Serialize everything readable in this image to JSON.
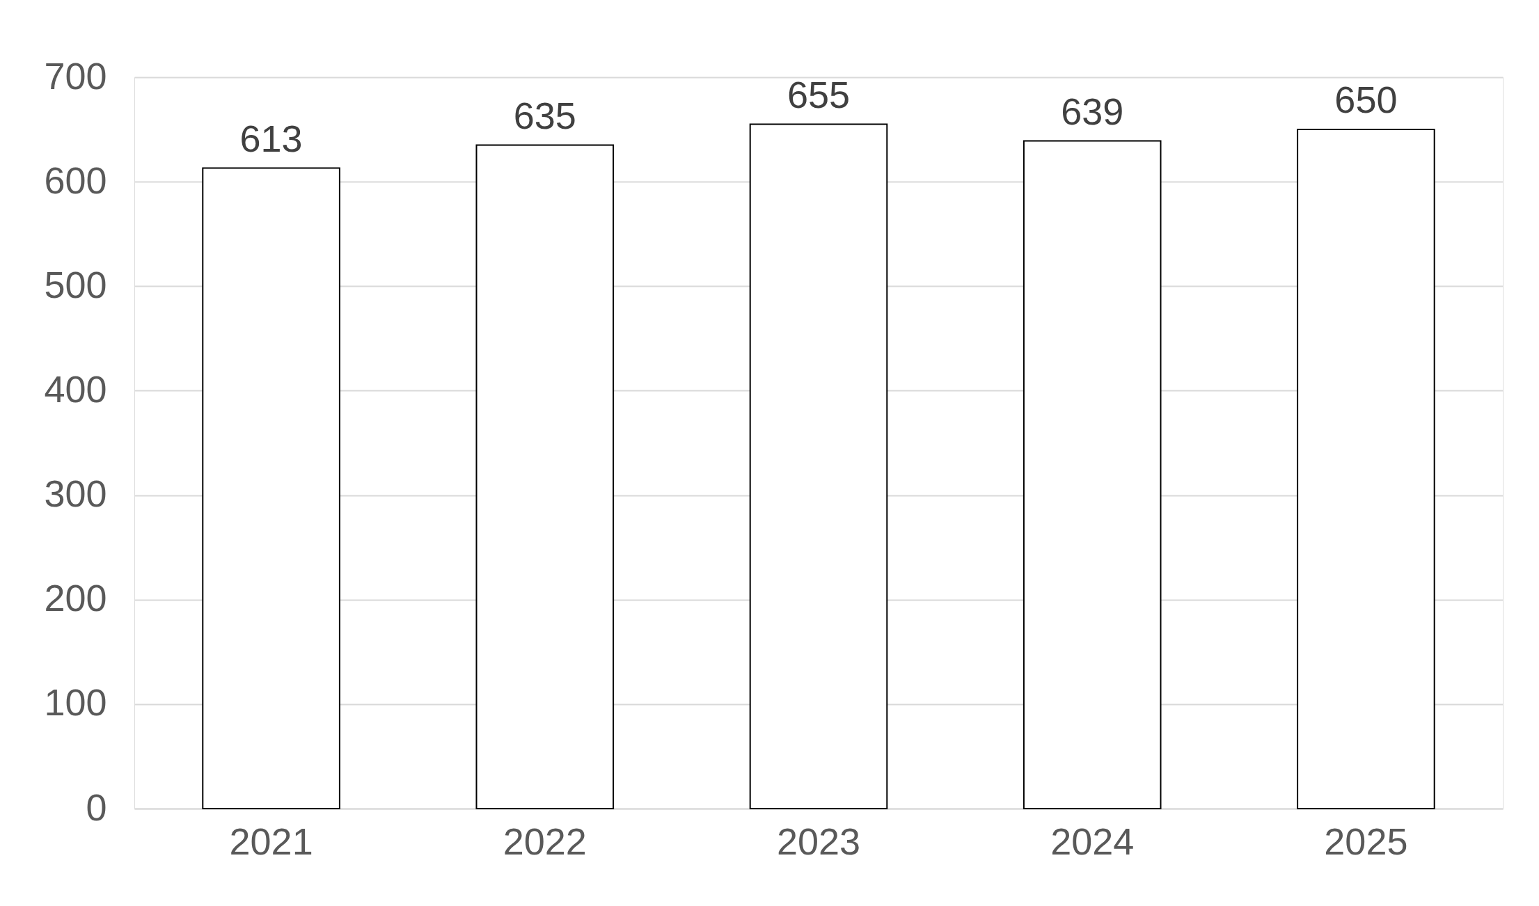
{
  "chart_data": {
    "type": "bar",
    "categories": [
      "2021",
      "2022",
      "2023",
      "2024",
      "2025"
    ],
    "values": [
      613,
      635,
      655,
      639,
      650
    ],
    "color": "#ffffff",
    "ylim": [
      0,
      700
    ],
    "yticks": [
      0,
      100,
      200,
      300,
      400,
      500,
      600,
      700
    ],
    "grid": "y",
    "data_labels": true
  }
}
